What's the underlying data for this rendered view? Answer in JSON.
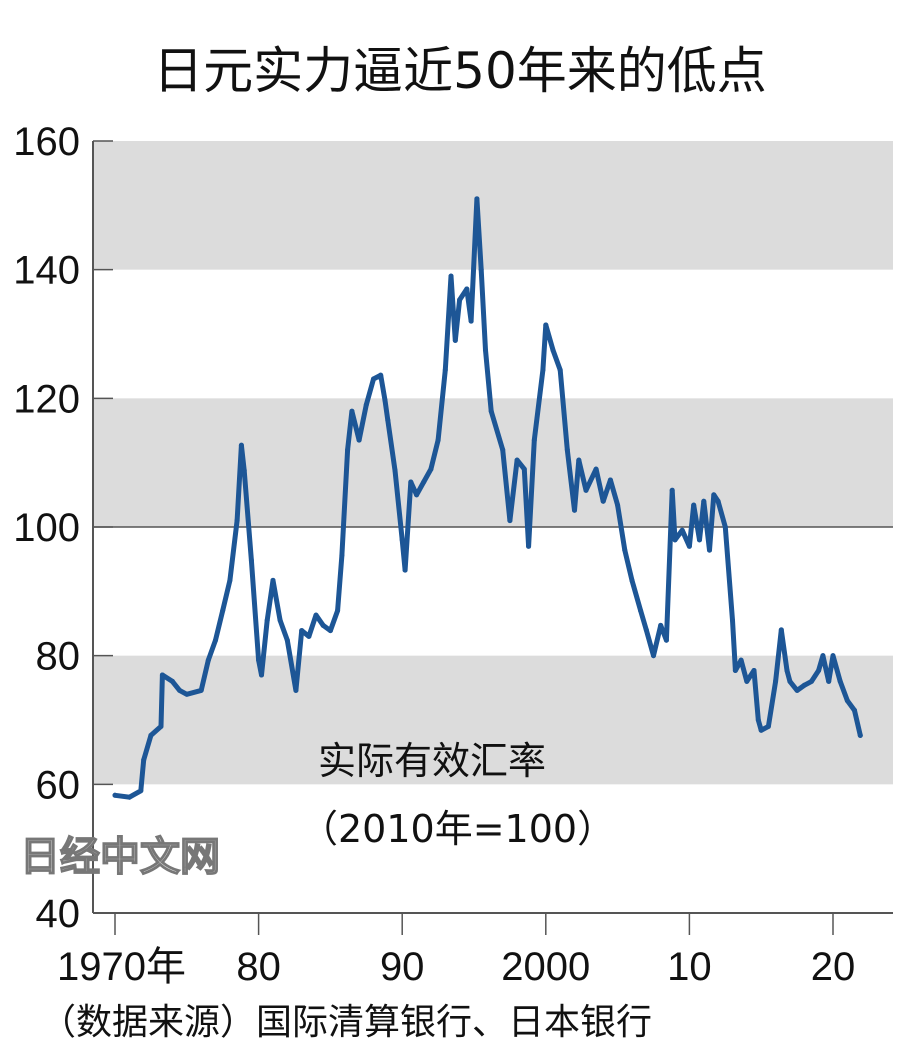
{
  "chart_data": {
    "type": "line",
    "title": "日元实力逼近50年来的低点",
    "annotation": [
      "实际有效汇率",
      "（2010年=100）"
    ],
    "source": "（数据来源）国际清算银行、日本银行",
    "watermark": "日经中文网",
    "xlabel": "",
    "ylabel": "",
    "xlim": [
      1968.5,
      2025.5
    ],
    "ylim": [
      40,
      160
    ],
    "x_ticks": [
      1970,
      1980,
      1990,
      2000,
      2010,
      2020
    ],
    "x_tick_labels": [
      "1970年",
      "80",
      "90",
      "2000",
      "10",
      "20"
    ],
    "y_ticks": [
      40,
      60,
      80,
      100,
      120,
      140,
      160
    ],
    "y_tick_labels": [
      "40",
      "60",
      "80",
      "100",
      "120",
      "140",
      "160"
    ],
    "shaded_bands": [
      [
        60,
        80
      ],
      [
        100,
        120
      ],
      [
        140,
        160
      ]
    ],
    "reference_line": 100,
    "grid": false,
    "colors": {
      "line": "#1d5696",
      "band": "#dcdcdc",
      "ref_line": "#555555"
    },
    "series": [
      {
        "x": [
          1970.0,
          1971.0,
          1971.8,
          1972.0,
          1972.5,
          1973.2,
          1973.3,
          1974.0,
          1974.5,
          1975.0,
          1976.0,
          1976.5,
          1977.0,
          1977.5,
          1978.0,
          1978.5,
          1978.8,
          1979.0,
          1979.5,
          1980.0,
          1980.2,
          1980.6,
          1981.0,
          1981.5,
          1982.0,
          1982.6,
          1983.0,
          1983.5,
          1984.0,
          1984.5,
          1985.0,
          1985.5,
          1985.8,
          1986.2,
          1986.5,
          1987.0,
          1987.5,
          1988.0,
          1988.5,
          1988.8,
          1989.0,
          1989.5,
          1990.0,
          1990.2,
          1990.6,
          1991.0,
          1991.5,
          1992.0,
          1992.5,
          1993.0,
          1993.4,
          1993.7,
          1994.0,
          1994.5,
          1994.8,
          1995.2,
          1995.5,
          1995.8,
          1996.2,
          1997.0,
          1997.5,
          1998.0,
          1998.5,
          1998.8,
          1999.2,
          1999.8,
          2000.0,
          2000.5,
          2001.0,
          2001.5,
          2002.0,
          2002.3,
          2002.8,
          2003.5,
          2004.0,
          2004.5,
          2005.0,
          2005.5,
          2006.0,
          2006.6,
          2007.0,
          2007.5,
          2008.0,
          2008.4,
          2008.8,
          2009.0,
          2009.5,
          2010.0,
          2010.3,
          2010.7,
          2011.0,
          2011.4,
          2011.7,
          2012.0,
          2012.5,
          2013.0,
          2013.2,
          2013.6,
          2014.0,
          2014.5,
          2014.8,
          2015.0,
          2015.5,
          2016.0,
          2016.4,
          2016.8,
          2017.0,
          2017.5,
          2018.0,
          2018.5,
          2019.0,
          2019.3,
          2019.7,
          2020.0,
          2020.5,
          2021.0,
          2021.5,
          2021.9
        ],
        "y": [
          58.3,
          58,
          59,
          63.8,
          67.6,
          69,
          77,
          76,
          74.6,
          74,
          74.6,
          79.3,
          82.4,
          87,
          91.7,
          101,
          112.7,
          108.8,
          94.8,
          79.3,
          77,
          85.5,
          91.7,
          85.5,
          82.4,
          74.6,
          83.9,
          83,
          86.3,
          84.7,
          83.9,
          87,
          95.6,
          112,
          118,
          113.5,
          119,
          123,
          123.6,
          119.7,
          116.6,
          108.8,
          98,
          93.3,
          107,
          105,
          107,
          109,
          113.5,
          124.4,
          139,
          129,
          135.3,
          137,
          132,
          151,
          140,
          127.5,
          118,
          112,
          101,
          110.4,
          109,
          97,
          113.5,
          124.4,
          131.4,
          127.5,
          124.4,
          112,
          102.6,
          110.4,
          105.7,
          109,
          104,
          107.3,
          103.4,
          96.4,
          91.7,
          87,
          84,
          80,
          84.7,
          82.4,
          105.7,
          98,
          99.5,
          97,
          103.4,
          98,
          104,
          96.4,
          105,
          104,
          100,
          85.5,
          77.7,
          79.3,
          76,
          77.7,
          70,
          68.4,
          69,
          76,
          84,
          77.7,
          76,
          74.6,
          75.4,
          76,
          77.7,
          80,
          76,
          80,
          76,
          73,
          71.5,
          67.6
        ]
      }
    ]
  }
}
